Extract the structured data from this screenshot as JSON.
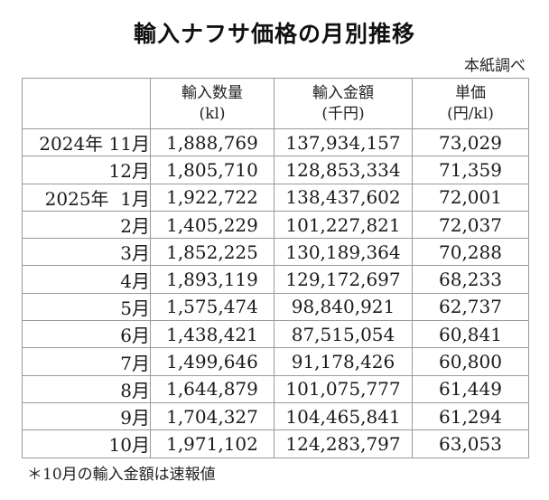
{
  "title": "輸入ナフサ価格の月別推移",
  "source": "本紙調べ",
  "table": {
    "headers": [
      {
        "line1": "",
        "line2": ""
      },
      {
        "line1": "輸入数量",
        "line2": "(kl)"
      },
      {
        "line1": "輸入金額",
        "line2": "(千円)"
      },
      {
        "line1": "単価",
        "line2": "(円/kl)"
      }
    ],
    "rows": [
      {
        "period": "2024年 11月",
        "volume": "1,888,769",
        "amount": "137,934,157",
        "unit_price": "73,029"
      },
      {
        "period": "12月",
        "volume": "1,805,710",
        "amount": "128,853,334",
        "unit_price": "71,359"
      },
      {
        "period": "2025年  1月",
        "volume": "1,922,722",
        "amount": "138,437,602",
        "unit_price": "72,001"
      },
      {
        "period": "2月",
        "volume": "1,405,229",
        "amount": "101,227,821",
        "unit_price": "72,037"
      },
      {
        "period": "3月",
        "volume": "1,852,225",
        "amount": "130,189,364",
        "unit_price": "70,288"
      },
      {
        "period": "4月",
        "volume": "1,893,119",
        "amount": "129,172,697",
        "unit_price": "68,233"
      },
      {
        "period": "5月",
        "volume": "1,575,474",
        "amount": "98,840,921",
        "unit_price": "62,737"
      },
      {
        "period": "6月",
        "volume": "1,438,421",
        "amount": "87,515,054",
        "unit_price": "60,841"
      },
      {
        "period": "7月",
        "volume": "1,499,646",
        "amount": "91,178,426",
        "unit_price": "60,800"
      },
      {
        "period": "8月",
        "volume": "1,644,879",
        "amount": "101,075,777",
        "unit_price": "61,449"
      },
      {
        "period": "9月",
        "volume": "1,704,327",
        "amount": "104,465,841",
        "unit_price": "61,294"
      },
      {
        "period": "10月",
        "volume": "1,971,102",
        "amount": "124,283,797",
        "unit_price": "63,053"
      }
    ]
  },
  "note": "＊10月の輸入金額は速報値"
}
